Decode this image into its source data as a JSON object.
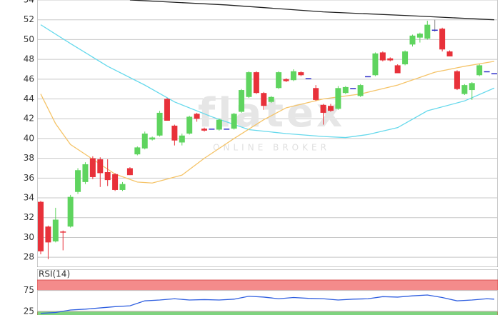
{
  "chart_data": [
    {
      "type": "candlestick",
      "watermark": "flatex",
      "watermark_subtitle": "ONLINE BROKER",
      "ylim": [
        27,
        54
      ],
      "yticks": [
        28,
        30,
        32,
        34,
        36,
        38,
        40,
        42,
        44,
        46,
        48,
        50,
        52,
        54
      ],
      "grid": true,
      "up_color": "#5fd45f",
      "down_color": "#e8313a",
      "flat_color": "#2b2bc8",
      "open": [
        33.6,
        31.1,
        29.6,
        30.6,
        31.1,
        34.6,
        35.6,
        38.0,
        37.9,
        36.6,
        36.4,
        34.8,
        37.0,
        38.4,
        39.0,
        39.9,
        40.3,
        44.0,
        41.3,
        39.6,
        40.5,
        42.5,
        41.0,
        41.0,
        40.9,
        41.0,
        41.0,
        42.7,
        44.2,
        46.7,
        44.6,
        43.7,
        45.1,
        46.0,
        45.9,
        46.7,
        46.1,
        45.1,
        43.4,
        43.3,
        43.0,
        44.6,
        45.1,
        44.3,
        46.3,
        46.4,
        48.7,
        48.1,
        47.4,
        47.5,
        49.5,
        50.2,
        50.1,
        51.0,
        51.1,
        48.8,
        46.8,
        44.5,
        44.9,
        46.4,
        46.8,
        46.6
      ],
      "high": [
        33.7,
        31.2,
        33.0,
        30.7,
        34.3,
        37.0,
        37.6,
        38.2,
        38.1,
        37.9,
        36.5,
        35.6,
        37.1,
        39.2,
        40.7,
        40.2,
        42.8,
        44.1,
        41.4,
        40.5,
        42.3,
        42.6,
        41.1,
        41.0,
        42.0,
        41.0,
        42.6,
        45.0,
        46.8,
        46.8,
        44.7,
        44.3,
        46.8,
        46.1,
        47.0,
        46.8,
        46.1,
        45.4,
        43.5,
        43.5,
        45.3,
        45.3,
        45.1,
        45.5,
        46.3,
        48.7,
        48.8,
        48.2,
        47.5,
        48.9,
        50.5,
        50.7,
        51.9,
        52.0,
        51.2,
        48.9,
        46.9,
        45.5,
        45.7,
        47.5,
        46.8,
        46.6
      ],
      "low": [
        28.3,
        27.8,
        29.5,
        28.7,
        31.0,
        34.4,
        35.4,
        35.9,
        35.1,
        35.2,
        34.7,
        34.7,
        36.3,
        38.3,
        38.9,
        39.8,
        40.2,
        41.8,
        39.3,
        39.3,
        40.4,
        41.7,
        40.7,
        41.0,
        40.8,
        41.0,
        40.9,
        42.6,
        44.1,
        44.5,
        42.9,
        43.6,
        45.0,
        45.7,
        45.8,
        46.3,
        46.1,
        43.8,
        41.4,
        42.7,
        42.9,
        44.5,
        45.1,
        44.2,
        46.3,
        46.3,
        47.8,
        47.8,
        46.6,
        47.4,
        49.3,
        49.7,
        50.0,
        50.8,
        48.8,
        48.3,
        44.9,
        44.4,
        43.9,
        46.3,
        46.8,
        46.6
      ],
      "close": [
        28.6,
        29.5,
        31.8,
        30.5,
        34.1,
        36.8,
        37.4,
        36.1,
        36.5,
        35.8,
        34.8,
        35.4,
        36.3,
        39.1,
        40.5,
        40.1,
        42.6,
        41.8,
        39.8,
        40.3,
        42.2,
        42.0,
        40.8,
        41.0,
        41.9,
        41.0,
        42.5,
        44.9,
        46.7,
        44.6,
        43.3,
        44.2,
        46.7,
        45.8,
        46.8,
        46.4,
        46.1,
        43.9,
        42.6,
        42.8,
        45.1,
        45.2,
        45.1,
        45.4,
        46.3,
        48.6,
        47.9,
        47.9,
        46.6,
        48.8,
        50.4,
        50.6,
        51.5,
        51.0,
        49.0,
        48.3,
        45.0,
        45.4,
        45.6,
        47.4,
        46.8,
        46.6
      ],
      "series": [
        {
          "color": "#222222",
          "x": [
            12,
            25,
            38,
            50,
            61
          ],
          "values": [
            54.0,
            53.5,
            52.8,
            52.4,
            52.0
          ]
        },
        {
          "color": "#66d9ec",
          "x": [
            0,
            4,
            9,
            14,
            18,
            23,
            28,
            33,
            38,
            41,
            44,
            48,
            52,
            57,
            61
          ],
          "values": [
            51.5,
            49.6,
            47.3,
            45.4,
            43.7,
            42.2,
            40.9,
            40.5,
            40.2,
            40.1,
            40.4,
            41.1,
            42.8,
            43.8,
            45.1
          ]
        },
        {
          "color": "#f5c469",
          "x": [
            0,
            2,
            4,
            7,
            10,
            13,
            15,
            19,
            22,
            26,
            30,
            33,
            38,
            43,
            48,
            53,
            57,
            61
          ],
          "values": [
            44.5,
            41.5,
            39.4,
            37.9,
            36.4,
            35.6,
            35.5,
            36.3,
            38.0,
            40.0,
            41.9,
            43.1,
            44.0,
            44.5,
            45.4,
            46.7,
            47.3,
            47.8
          ]
        }
      ]
    },
    {
      "type": "line",
      "title": "RSI(14)",
      "ylim": [
        16,
        100
      ],
      "yticks": [
        25,
        75
      ],
      "bands": [
        {
          "from": 75,
          "to": 100,
          "color": "#f48b8b"
        },
        {
          "from": 0,
          "to": 25,
          "color": "#7fd37f"
        }
      ],
      "series": [
        {
          "color": "#2f5fe0",
          "x": [
            0,
            2,
            4,
            6,
            8,
            10,
            12,
            14,
            16,
            18,
            20,
            22,
            24,
            26,
            28,
            30,
            32,
            34,
            36,
            38,
            40,
            42,
            44,
            46,
            48,
            50,
            52,
            54,
            56,
            58,
            60,
            61
          ],
          "values": [
            20,
            22,
            28,
            30,
            33,
            36,
            38,
            50,
            52,
            55,
            52,
            53,
            52,
            54,
            61,
            59,
            55,
            58,
            56,
            55,
            52,
            54,
            55,
            60,
            59,
            62,
            64,
            58,
            50,
            52,
            55,
            54
          ]
        }
      ]
    }
  ]
}
